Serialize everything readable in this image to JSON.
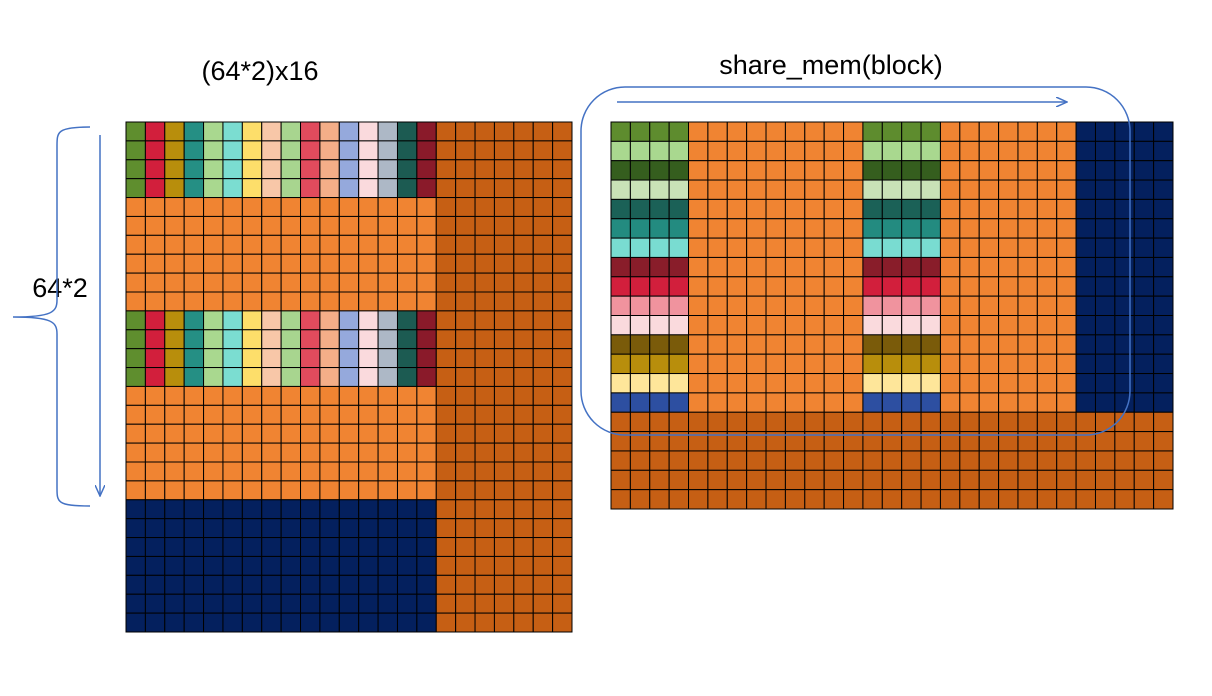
{
  "labels": {
    "left_title": "(64*2)x16",
    "right_title": "share_mem(block)",
    "side_label": "64*2"
  },
  "colors": {
    "orange": "#F08432",
    "dark_orange": "#C65F14",
    "navy": "#04205E",
    "grid_line": "#000000",
    "annotation_blue": "#4472C4"
  },
  "left_strip_colors": [
    "#5F8E2E",
    "#D21F3C",
    "#B88E0C",
    "#258F84",
    "#A9D88F",
    "#7BDDD1",
    "#FDDE6A",
    "#F8C7A8",
    "#A8D58F",
    "#E14B5D",
    "#F4AE88",
    "#95A9DC",
    "#FADADD",
    "#ADB8C6",
    "#1C5B52",
    "#8A1A2A"
  ],
  "right_row_colors": [
    "#5E8C2E",
    "#A9D88F",
    "#355E1E",
    "#C9E2B7",
    "#1B6157",
    "#238B80",
    "#79DCD1",
    "#891D2A",
    "#D21F3C",
    "#F0939E",
    "#FADADD",
    "#7A5B0A",
    "#B88E0C",
    "#FEE69A",
    "#2D4FA1",
    "#7B3AA5"
  ]
}
